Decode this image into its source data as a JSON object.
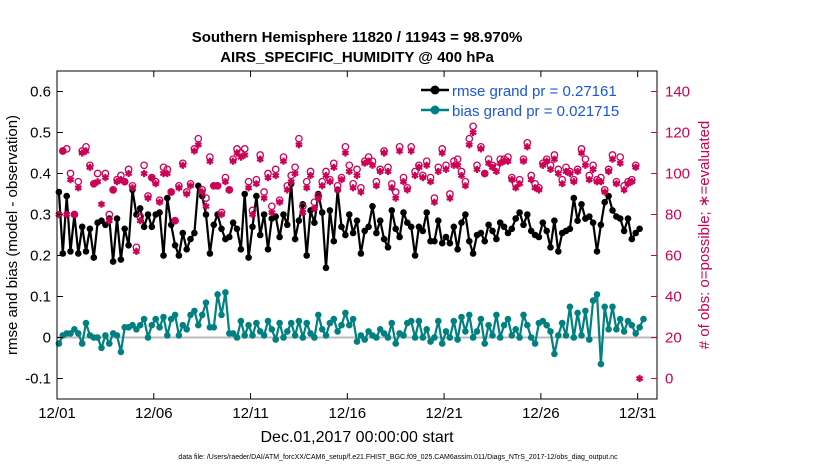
{
  "chart_data": {
    "type": "line",
    "title_line1": "Southern Hemisphere 11820 / 11943 = 98.970%",
    "title_line2": "AIRS_SPECIFIC_HUMIDITY @ 400 hPa",
    "xlabel": "Dec.01,2017 00:00:00 start",
    "ylabel_left": "rmse and bias (model - observation)",
    "ylabel_right": "# of obs: o=possible; ∗=evaluated",
    "footer": "data file: /Users/raeder/DAI/ATM_forcXX/CAM6_setup/f.e21.FHIST_BGC.f09_025.CAM6assim.011/Diags_NTrS_2017-12/obs_diag_output.nc",
    "x_ticks": [
      "12/01",
      "12/06",
      "12/11",
      "12/16",
      "12/21",
      "12/26",
      "12/31"
    ],
    "x_tick_days": [
      1,
      6,
      11,
      16,
      21,
      26,
      31
    ],
    "xlim": [
      1.0,
      32.0
    ],
    "ylim_left": [
      -0.15,
      0.65
    ],
    "yticks_left": [
      "-0.1",
      "0",
      "0.1",
      "0.2",
      "0.3",
      "0.4",
      "0.5",
      "0.6"
    ],
    "ylim_right": [
      -10,
      150
    ],
    "yticks_right": [
      "0",
      "20",
      "40",
      "60",
      "80",
      "100",
      "120",
      "140"
    ],
    "legend": [
      {
        "label": "rmse grand pr = 0.27161",
        "color": "#000000"
      },
      {
        "label": "bias grand pr = 0.021715",
        "color": "#008080"
      }
    ],
    "colors": {
      "rmse": "#000000",
      "bias": "#008080",
      "obs": "#cc0055",
      "zero_line": "#bbbbbb",
      "legend_text": "#1a56db"
    },
    "rmse": [
      0.355,
      0.205,
      0.345,
      0.21,
      0.3,
      0.205,
      0.27,
      0.21,
      0.265,
      0.195,
      0.28,
      0.285,
      0.275,
      0.29,
      0.185,
      0.29,
      0.19,
      0.265,
      0.225,
      0.36,
      0.3,
      0.315,
      0.27,
      0.3,
      0.27,
      0.3,
      0.305,
      0.2,
      0.34,
      0.275,
      0.225,
      0.2,
      0.255,
      0.215,
      0.24,
      0.255,
      0.37,
      0.345,
      0.3,
      0.205,
      0.275,
      0.3,
      0.265,
      0.24,
      0.245,
      0.28,
      0.265,
      0.215,
      0.35,
      0.195,
      0.27,
      0.345,
      0.25,
      0.3,
      0.215,
      0.29,
      0.295,
      0.245,
      0.3,
      0.275,
      0.375,
      0.24,
      0.285,
      0.325,
      0.2,
      0.31,
      0.28,
      0.35,
      0.305,
      0.17,
      0.31,
      0.235,
      0.36,
      0.27,
      0.25,
      0.3,
      0.255,
      0.285,
      0.205,
      0.26,
      0.27,
      0.32,
      0.255,
      0.285,
      0.24,
      0.22,
      0.31,
      0.265,
      0.245,
      0.305,
      0.28,
      0.27,
      0.2,
      0.27,
      0.26,
      0.305,
      0.235,
      0.235,
      0.285,
      0.23,
      0.245,
      0.23,
      0.27,
      0.215,
      0.28,
      0.3,
      0.235,
      0.205,
      0.25,
      0.255,
      0.235,
      0.275,
      0.26,
      0.24,
      0.28,
      0.27,
      0.255,
      0.265,
      0.29,
      0.305,
      0.275,
      0.3,
      0.26,
      0.25,
      0.245,
      0.28,
      0.26,
      0.22,
      0.285,
      0.21,
      0.255,
      0.26,
      0.265,
      0.34,
      0.285,
      0.325,
      0.29,
      0.295,
      0.28,
      0.21,
      0.275,
      0.33,
      0.345,
      0.31,
      0.295,
      0.29,
      0.26,
      0.29,
      0.24,
      0.255,
      0.265
    ],
    "bias": [
      -0.015,
      0.005,
      0.01,
      0.01,
      0.02,
      0.01,
      -0.015,
      0.035,
      0.005,
      0.0,
      0.0,
      -0.025,
      0.005,
      -0.015,
      0.01,
      0.005,
      -0.035,
      0.025,
      0.025,
      0.03,
      0.02,
      0.03,
      0.045,
      0.0,
      0.03,
      0.045,
      0.025,
      0.05,
      0.005,
      0.045,
      0.055,
      0.005,
      0.03,
      0.02,
      0.055,
      0.065,
      0.03,
      0.055,
      0.085,
      0.025,
      0.025,
      0.105,
      0.055,
      0.11,
      0.01,
      0.01,
      0.0,
      0.04,
      0.005,
      0.03,
      0.005,
      0.035,
      0.015,
      0.005,
      0.04,
      0.02,
      -0.005,
      0.035,
      0.0,
      0.015,
      0.035,
      0.005,
      0.04,
      0.0,
      0.035,
      0.01,
      0.0,
      0.055,
      0.02,
      0.005,
      0.035,
      0.045,
      0.015,
      0.03,
      0.06,
      0.03,
      0.045,
      -0.01,
      0.005,
      -0.005,
      0.015,
      0.005,
      0.0,
      0.02,
      0.01,
      0.0,
      0.035,
      -0.015,
      0.01,
      0.005,
      0.035,
      0.04,
      0.0,
      0.04,
      0.0,
      0.02,
      -0.01,
      0.0,
      0.04,
      -0.015,
      0.015,
      0.0,
      0.04,
      -0.005,
      0.05,
      0.015,
      0.055,
      0.0,
      0.015,
      0.045,
      -0.015,
      0.03,
      0.005,
      0.055,
      0.0,
      0.03,
      0.045,
      0.005,
      0.02,
      0.0,
      0.055,
      0.03,
      0.0,
      -0.015,
      0.035,
      0.04,
      0.03,
      0.015,
      -0.04,
      0.005,
      0.035,
      0.005,
      0.075,
      0.0,
      0.06,
      0.005,
      0.065,
      -0.005,
      0.09,
      0.105,
      -0.065,
      0.075,
      0.02,
      0.075,
      0.02,
      0.045,
      0.015,
      0.04,
      0.03,
      0.01,
      0.025,
      0.045
    ],
    "obs_possible": [
      null,
      111,
      112,
      100,
      80,
      96,
      111,
      113,
      104,
      95,
      100,
      null,
      100,
      80,
      92,
      97,
      99,
      96,
      102,
      94,
      64,
      79,
      104,
      89,
      98,
      96,
      87,
      103,
      102,
      91,
      77,
      94,
      105,
      91,
      95,
      112,
      117,
      92,
      88,
      108,
      94,
      94,
      81,
      98,
      92,
      107,
      112,
      110,
      112,
      96,
      82,
      97,
      109,
      91,
      100,
      84,
      102,
      87,
      108,
      94,
      99,
      103,
      117,
      84,
      96,
      101,
      86,
      89,
      96,
      101,
      97,
      105,
      94,
      98,
      113,
      104,
      95,
      102,
      93,
      106,
      108,
      106,
      96,
      102,
      111,
      103,
      95,
      91,
      113,
      98,
      93,
      113,
      101,
      104,
      99,
      106,
      98,
      88,
      103,
      112,
      104,
      90,
      106,
      107,
      101,
      96,
      117,
      123,
      104,
      113,
      100,
      107,
      104,
      103,
      107,
      107,
      108,
      98,
      95,
      97,
      107,
      115,
      99,
      95,
      93,
      105,
      107,
      104,
      109,
      102,
      97,
      103,
      101,
      97,
      102,
      112,
      107,
      99,
      104,
      97,
      98,
      92,
      102,
      109,
      96,
      108,
      94,
      96,
      97,
      104,
      null
    ],
    "obs_evaluated": [
      80,
      111,
      80,
      97,
      80,
      93,
      110,
      111,
      103,
      95,
      96,
      85,
      98,
      77,
      92,
      96,
      97,
      96,
      100,
      93,
      62,
      77,
      100,
      88,
      98,
      95,
      86,
      100,
      100,
      91,
      77,
      93,
      104,
      90,
      94,
      111,
      114,
      91,
      84,
      106,
      94,
      94,
      80,
      96,
      92,
      106,
      110,
      108,
      109,
      93,
      80,
      95,
      107,
      88,
      98,
      81,
      99,
      86,
      106,
      92,
      96,
      100,
      114,
      81,
      93,
      99,
      83,
      88,
      94,
      99,
      96,
      103,
      92,
      97,
      110,
      101,
      93,
      99,
      91,
      105,
      106,
      104,
      94,
      101,
      110,
      101,
      93,
      88,
      111,
      96,
      92,
      111,
      99,
      103,
      98,
      104,
      96,
      86,
      101,
      110,
      102,
      88,
      104,
      104,
      99,
      94,
      114,
      120,
      102,
      112,
      100,
      105,
      103,
      101,
      105,
      106,
      106,
      97,
      93,
      95,
      106,
      113,
      97,
      93,
      92,
      104,
      106,
      102,
      107,
      100,
      95,
      101,
      100,
      96,
      101,
      110,
      104,
      97,
      102,
      96,
      96,
      91,
      101,
      107,
      95,
      105,
      92,
      95,
      96,
      103,
      0
    ]
  }
}
